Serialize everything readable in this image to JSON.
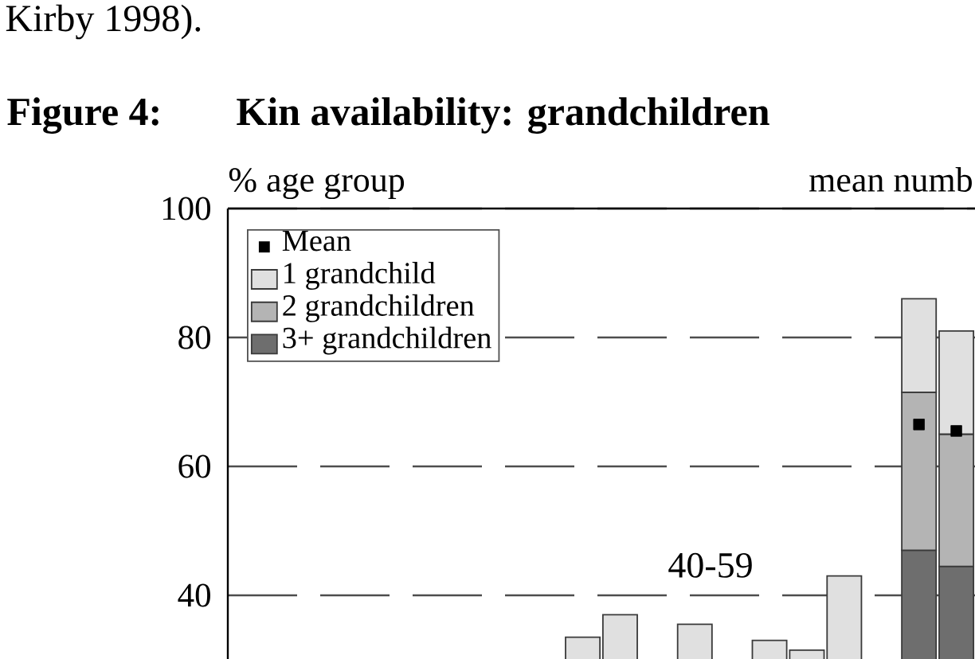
{
  "chart_data": {
    "type": "bar",
    "title": "Figure 4:",
    "subtitle": "Kin availability: grandchildren",
    "ylabel": "% age group",
    "y2label": "mean numb",
    "annotations": [
      "Kirby 1998).",
      "40-59"
    ],
    "categories": [
      null,
      null,
      null,
      null,
      null,
      null,
      null,
      null,
      null,
      null,
      null,
      null,
      null,
      null,
      null,
      null,
      null,
      null,
      null,
      null
    ],
    "stacked": true,
    "series": [
      {
        "name": "3+ grandchildren",
        "color": "#6e6e6e",
        "values": [
          null,
          null,
          null,
          null,
          null,
          null,
          null,
          null,
          null,
          null,
          null,
          null,
          null,
          null,
          null,
          null,
          null,
          null,
          47,
          44.5
        ]
      },
      {
        "name": "2 grandchildren",
        "color": "#b4b4b4",
        "values": [
          null,
          null,
          null,
          null,
          null,
          null,
          null,
          null,
          null,
          null,
          null,
          null,
          null,
          null,
          null,
          null,
          null,
          null,
          24.5,
          20.5
        ]
      },
      {
        "name": "1 grandchild",
        "color": "#e0e0e0",
        "values": [
          null,
          null,
          null,
          null,
          null,
          null,
          null,
          null,
          null,
          33.5,
          37,
          null,
          35.5,
          null,
          33,
          31.5,
          43,
          null,
          14.5,
          16
        ]
      },
      {
        "name": "Mean",
        "type": "scatter",
        "marker": "square",
        "color": "#000000",
        "values": [
          null,
          null,
          null,
          null,
          null,
          null,
          null,
          null,
          null,
          null,
          null,
          null,
          null,
          null,
          null,
          null,
          null,
          null,
          66.5,
          65.5
        ]
      }
    ],
    "ylim": [
      0,
      100
    ],
    "yticks": [
      40,
      60,
      80,
      100
    ],
    "grid": "y",
    "legend": "top left",
    "tick_labels": "y"
  }
}
